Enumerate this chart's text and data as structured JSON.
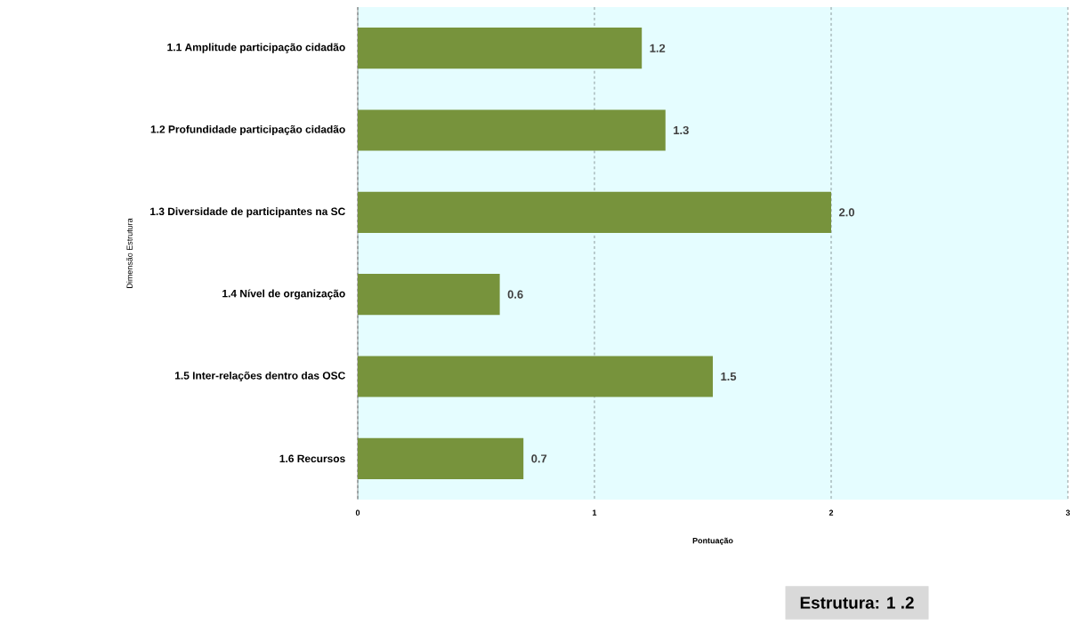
{
  "chart_data": {
    "type": "bar",
    "orientation": "horizontal",
    "xlabel": "Pontuação",
    "ylabel": "Dimensão Estrutura",
    "categories": [
      "1.1 Amplitude participação cidadão",
      "1.2 Profundidade participação cidadão",
      "1.3 Diversidade de participantes na SC",
      "1.4 Nível de organização",
      "1.5 Inter-relações dentro das OSC",
      "1.6 Recursos"
    ],
    "values": [
      1.2,
      1.3,
      2.0,
      0.6,
      1.5,
      0.7
    ],
    "value_labels": [
      "1.2",
      "1.3",
      "2.0",
      "0.6",
      "1.5",
      "0.7"
    ],
    "color": "#77933c",
    "xlim": [
      0,
      3
    ],
    "xticks": [
      0,
      1,
      2,
      3
    ],
    "grid": "x",
    "annotations": [
      "Estrutura: 1 .2"
    ]
  }
}
